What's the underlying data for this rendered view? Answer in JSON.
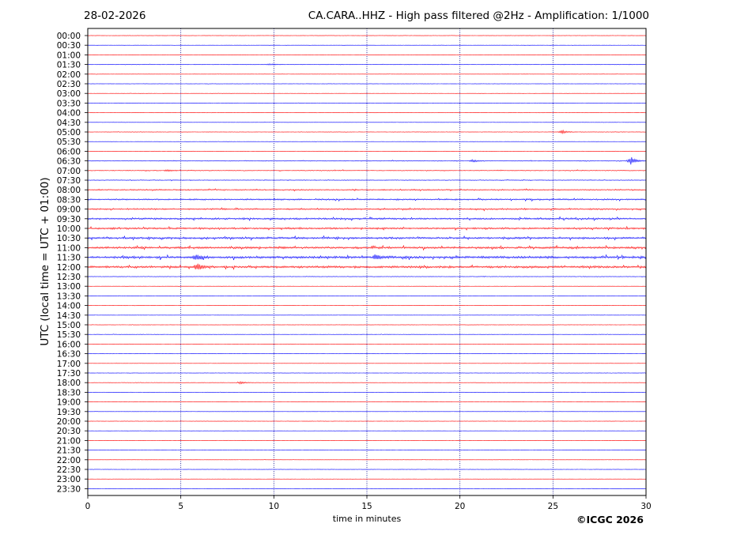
{
  "header": {
    "date": "28-02-2026",
    "title": "CA.CARA..HHZ - High pass filtered @2Hz - Amplification: 1/1000"
  },
  "footer": {
    "copyright": "©ICGC 2026"
  },
  "colors": {
    "trace_a": "#ff0000",
    "trace_b": "#0000ff",
    "axis": "#000000",
    "grid": "#00008b"
  },
  "chart_data": {
    "type": "line",
    "xlabel": "time in minutes",
    "ylabel": "UTC (local time = UTC + 01:00)",
    "xlim": [
      0,
      30
    ],
    "x_ticks": [
      0,
      5,
      10,
      15,
      20,
      25,
      30
    ],
    "x_tick_labels": [
      "0",
      "5",
      "10",
      "15",
      "20",
      "25",
      "30"
    ],
    "vertical_grid": true,
    "rows": [
      "00:00",
      "00:30",
      "01:00",
      "01:30",
      "02:00",
      "02:30",
      "03:00",
      "03:30",
      "04:00",
      "04:30",
      "05:00",
      "05:30",
      "06:00",
      "06:30",
      "07:00",
      "07:30",
      "08:00",
      "08:30",
      "09:00",
      "09:30",
      "10:00",
      "10:30",
      "11:00",
      "11:30",
      "12:00",
      "12:30",
      "13:00",
      "13:30",
      "14:00",
      "14:30",
      "15:00",
      "15:30",
      "16:00",
      "16:30",
      "17:00",
      "17:30",
      "18:00",
      "18:30",
      "19:00",
      "19:30",
      "20:00",
      "20:30",
      "21:00",
      "21:30",
      "22:00",
      "22:30",
      "23:00",
      "23:30"
    ],
    "row_colors": [
      "red",
      "blue"
    ],
    "noise_level": [
      0.2,
      0.2,
      0.2,
      0.4,
      0.2,
      0.2,
      0.2,
      0.2,
      0.2,
      0.2,
      0.3,
      0.2,
      0.2,
      0.5,
      0.5,
      0.5,
      0.8,
      1.0,
      1.0,
      1.2,
      1.2,
      1.3,
      1.4,
      1.6,
      1.5,
      0.4,
      0.2,
      0.2,
      0.2,
      0.2,
      0.2,
      0.3,
      0.2,
      0.2,
      0.2,
      0.2,
      0.3,
      0.2,
      0.2,
      0.2,
      0.2,
      0.2,
      0.2,
      0.2,
      0.2,
      0.2,
      0.2,
      0.2
    ],
    "events": [
      {
        "row": "01:30",
        "minute": 9.8,
        "amplitude": 1.0
      },
      {
        "row": "05:00",
        "minute": 25.5,
        "amplitude": 2.5
      },
      {
        "row": "06:30",
        "minute": 20.7,
        "amplitude": 1.5
      },
      {
        "row": "06:30",
        "minute": 29.2,
        "amplitude": 5.0
      },
      {
        "row": "07:00",
        "minute": 4.3,
        "amplitude": 1.2
      },
      {
        "row": "11:30",
        "minute": 5.8,
        "amplitude": 3.5
      },
      {
        "row": "11:30",
        "minute": 15.5,
        "amplitude": 3.0
      },
      {
        "row": "12:00",
        "minute": 5.9,
        "amplitude": 4.0
      },
      {
        "row": "18:00",
        "minute": 8.2,
        "amplitude": 1.5
      }
    ]
  }
}
